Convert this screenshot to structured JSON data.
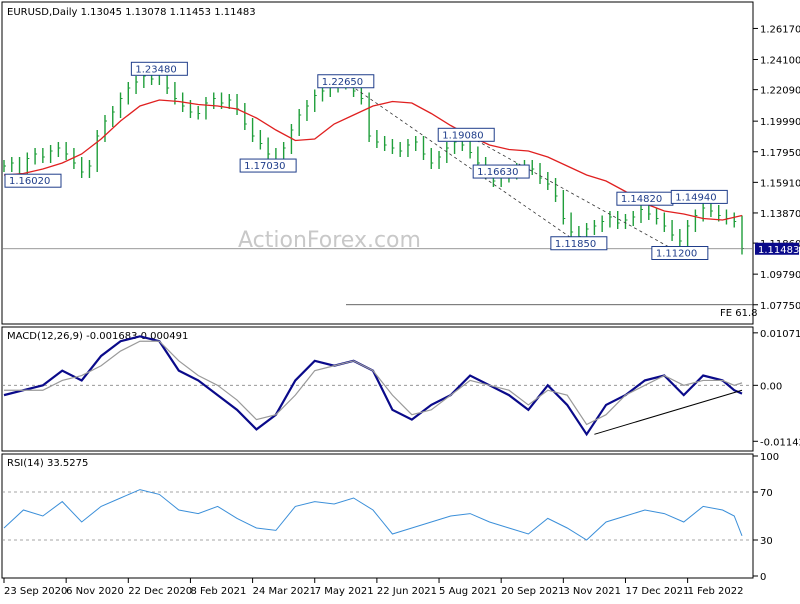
{
  "header": {
    "symbol_line": "EURUSD,Daily  1.13045 1.13078 1.11453 1.11483"
  },
  "watermark": "ActionForex.com",
  "colors": {
    "candle": "#1f9e3a",
    "ma": "#e02020",
    "macd_main": "#0a0a8a",
    "macd_signal": "#9a9a9a",
    "rsi": "#3b8fd9",
    "price_box": "#0a0a8a",
    "label": "#1f3d8a"
  },
  "chart_data": [
    {
      "type": "candlestick",
      "name": "price",
      "ylim": [
        1.066,
        1.278
      ],
      "y_ticks": [
        "1.26170",
        "1.24100",
        "1.22090",
        "1.19990",
        "1.17950",
        "1.15910",
        "1.13870",
        "1.11860",
        "1.09790",
        "1.07750"
      ],
      "y_tick_values": [
        1.2617,
        1.241,
        1.2209,
        1.1999,
        1.1795,
        1.1591,
        1.1387,
        1.1186,
        1.0979,
        1.0775
      ],
      "last_price": "1.11483",
      "last_price_value": 1.11483,
      "fe_label": "FE 61.8",
      "fe_value": 1.0775,
      "moving_average": [
        [
          0,
          1.164
        ],
        [
          10,
          1.165
        ],
        [
          20,
          1.168
        ],
        [
          30,
          1.172
        ],
        [
          40,
          1.178
        ],
        [
          50,
          1.188
        ],
        [
          60,
          1.2
        ],
        [
          70,
          1.21
        ],
        [
          80,
          1.214
        ],
        [
          90,
          1.213
        ],
        [
          100,
          1.211
        ],
        [
          110,
          1.21
        ],
        [
          120,
          1.208
        ],
        [
          130,
          1.202
        ],
        [
          140,
          1.194
        ],
        [
          150,
          1.187
        ],
        [
          160,
          1.188
        ],
        [
          170,
          1.198
        ],
        [
          180,
          1.204
        ],
        [
          190,
          1.21
        ],
        [
          200,
          1.213
        ],
        [
          210,
          1.212
        ],
        [
          220,
          1.205
        ],
        [
          230,
          1.197
        ],
        [
          240,
          1.19
        ],
        [
          250,
          1.184
        ],
        [
          260,
          1.181
        ],
        [
          270,
          1.18
        ],
        [
          280,
          1.176
        ],
        [
          290,
          1.17
        ],
        [
          300,
          1.164
        ],
        [
          310,
          1.16
        ],
        [
          320,
          1.153
        ],
        [
          330,
          1.145
        ],
        [
          340,
          1.14
        ],
        [
          350,
          1.138
        ],
        [
          360,
          1.135
        ],
        [
          370,
          1.134
        ],
        [
          380,
          1.137
        ]
      ],
      "candles": [
        [
          0,
          1.17
        ],
        [
          4,
          1.172
        ],
        [
          8,
          1.165
        ],
        [
          12,
          1.175
        ],
        [
          16,
          1.178
        ],
        [
          20,
          1.176
        ],
        [
          24,
          1.18
        ],
        [
          28,
          1.182
        ],
        [
          32,
          1.178
        ],
        [
          36,
          1.172
        ],
        [
          40,
          1.166
        ],
        [
          44,
          1.17
        ],
        [
          48,
          1.19
        ],
        [
          52,
          1.2
        ],
        [
          56,
          1.206
        ],
        [
          60,
          1.215
        ],
        [
          64,
          1.222
        ],
        [
          68,
          1.226
        ],
        [
          72,
          1.23
        ],
        [
          76,
          1.228
        ],
        [
          80,
          1.233
        ],
        [
          84,
          1.222
        ],
        [
          88,
          1.215
        ],
        [
          92,
          1.21
        ],
        [
          96,
          1.206
        ],
        [
          100,
          1.205
        ],
        [
          104,
          1.212
        ],
        [
          108,
          1.215
        ],
        [
          112,
          1.212
        ],
        [
          116,
          1.214
        ],
        [
          120,
          1.208
        ],
        [
          124,
          1.198
        ],
        [
          128,
          1.19
        ],
        [
          132,
          1.185
        ],
        [
          136,
          1.178
        ],
        [
          140,
          1.172
        ],
        [
          144,
          1.182
        ],
        [
          148,
          1.194
        ],
        [
          152,
          1.204
        ],
        [
          156,
          1.21
        ],
        [
          160,
          1.217
        ],
        [
          164,
          1.22
        ],
        [
          168,
          1.223
        ],
        [
          172,
          1.225
        ],
        [
          176,
          1.226
        ],
        [
          180,
          1.22
        ],
        [
          184,
          1.215
        ],
        [
          188,
          1.19
        ],
        [
          192,
          1.186
        ],
        [
          196,
          1.184
        ],
        [
          200,
          1.182
        ],
        [
          204,
          1.18
        ],
        [
          208,
          1.184
        ],
        [
          212,
          1.186
        ],
        [
          216,
          1.178
        ],
        [
          220,
          1.172
        ],
        [
          224,
          1.176
        ],
        [
          228,
          1.182
        ],
        [
          232,
          1.186
        ],
        [
          236,
          1.184
        ],
        [
          240,
          1.179
        ],
        [
          244,
          1.172
        ],
        [
          248,
          1.165
        ],
        [
          252,
          1.16
        ],
        [
          256,
          1.163
        ],
        [
          260,
          1.165
        ],
        [
          264,
          1.168
        ],
        [
          268,
          1.17
        ],
        [
          272,
          1.168
        ],
        [
          276,
          1.162
        ],
        [
          280,
          1.158
        ],
        [
          284,
          1.15
        ],
        [
          288,
          1.135
        ],
        [
          292,
          1.126
        ],
        [
          296,
          1.123
        ],
        [
          300,
          1.128
        ],
        [
          304,
          1.13
        ],
        [
          308,
          1.133
        ],
        [
          312,
          1.136
        ],
        [
          316,
          1.132
        ],
        [
          320,
          1.134
        ],
        [
          324,
          1.136
        ],
        [
          328,
          1.141
        ],
        [
          332,
          1.138
        ],
        [
          336,
          1.135
        ],
        [
          340,
          1.13
        ],
        [
          344,
          1.124
        ],
        [
          348,
          1.12
        ],
        [
          352,
          1.13
        ],
        [
          356,
          1.137
        ],
        [
          360,
          1.142
        ],
        [
          364,
          1.14
        ],
        [
          368,
          1.137
        ],
        [
          372,
          1.135
        ],
        [
          376,
          1.133
        ],
        [
          380,
          1.115
        ]
      ],
      "labels": [
        {
          "text": "1.16020",
          "x": 8,
          "price": 1.1602
        },
        {
          "text": "1.23480",
          "x": 80,
          "price": 1.2348
        },
        {
          "text": "1.17030",
          "x": 136,
          "price": 1.1703
        },
        {
          "text": "1.22650",
          "x": 176,
          "price": 1.2265
        },
        {
          "text": "1.16630",
          "x": 256,
          "price": 1.1663
        },
        {
          "text": "1.19080",
          "x": 238,
          "price": 1.1908
        },
        {
          "text": "1.11850",
          "x": 296,
          "price": 1.1185
        },
        {
          "text": "1.14820",
          "x": 330,
          "price": 1.1482
        },
        {
          "text": "1.14940",
          "x": 358,
          "price": 1.1494
        },
        {
          "text": "1.11200",
          "x": 348,
          "price": 1.112
        }
      ],
      "dashed_channel": [
        [
          176,
          1.226
        ],
        [
          296,
          1.1185
        ]
      ],
      "dashed_channel_2": [
        [
          238,
          1.1908
        ],
        [
          348,
          1.112
        ]
      ]
    },
    {
      "type": "line",
      "name": "MACD(12,26,9)",
      "header": "MACD(12,26,9) -0.001683 0.000491",
      "ylim": [
        -0.013,
        0.0115
      ],
      "y_ticks": [
        "0.010715",
        "0.00",
        "-0.011424"
      ],
      "y_tick_values": [
        0.010715,
        0.0,
        -0.011424
      ],
      "series": [
        {
          "name": "main",
          "values": [
            [
              0,
              -0.002
            ],
            [
              10,
              -0.001
            ],
            [
              20,
              0.0
            ],
            [
              30,
              0.003
            ],
            [
              40,
              0.001
            ],
            [
              50,
              0.006
            ],
            [
              60,
              0.009
            ],
            [
              70,
              0.01
            ],
            [
              80,
              0.009
            ],
            [
              90,
              0.003
            ],
            [
              100,
              0.001
            ],
            [
              110,
              -0.002
            ],
            [
              120,
              -0.005
            ],
            [
              130,
              -0.009
            ],
            [
              140,
              -0.006
            ],
            [
              150,
              0.001
            ],
            [
              160,
              0.005
            ],
            [
              170,
              0.004
            ],
            [
              180,
              0.005
            ],
            [
              190,
              0.003
            ],
            [
              200,
              -0.005
            ],
            [
              210,
              -0.007
            ],
            [
              220,
              -0.004
            ],
            [
              230,
              -0.002
            ],
            [
              240,
              0.002
            ],
            [
              250,
              0.0
            ],
            [
              260,
              -0.002
            ],
            [
              270,
              -0.005
            ],
            [
              280,
              0.0
            ],
            [
              290,
              -0.004
            ],
            [
              300,
              -0.01
            ],
            [
              310,
              -0.004
            ],
            [
              320,
              -0.002
            ],
            [
              330,
              0.001
            ],
            [
              340,
              0.002
            ],
            [
              350,
              -0.002
            ],
            [
              360,
              0.002
            ],
            [
              370,
              0.001
            ],
            [
              376,
              -0.001
            ],
            [
              380,
              -0.0017
            ]
          ]
        },
        {
          "name": "signal",
          "values": [
            [
              0,
              -0.001
            ],
            [
              10,
              -0.001
            ],
            [
              20,
              -0.001
            ],
            [
              30,
              0.001
            ],
            [
              40,
              0.002
            ],
            [
              50,
              0.004
            ],
            [
              60,
              0.007
            ],
            [
              70,
              0.009
            ],
            [
              80,
              0.009
            ],
            [
              90,
              0.005
            ],
            [
              100,
              0.002
            ],
            [
              110,
              0.0
            ],
            [
              120,
              -0.003
            ],
            [
              130,
              -0.007
            ],
            [
              140,
              -0.006
            ],
            [
              150,
              -0.002
            ],
            [
              160,
              0.003
            ],
            [
              170,
              0.004
            ],
            [
              180,
              0.005
            ],
            [
              190,
              0.003
            ],
            [
              200,
              -0.002
            ],
            [
              210,
              -0.006
            ],
            [
              220,
              -0.005
            ],
            [
              230,
              -0.002
            ],
            [
              240,
              0.001
            ],
            [
              250,
              0.0
            ],
            [
              260,
              -0.001
            ],
            [
              270,
              -0.004
            ],
            [
              280,
              -0.001
            ],
            [
              290,
              -0.002
            ],
            [
              300,
              -0.008
            ],
            [
              310,
              -0.006
            ],
            [
              320,
              -0.002
            ],
            [
              330,
              0.0
            ],
            [
              340,
              0.002
            ],
            [
              350,
              0.0
            ],
            [
              360,
              0.001
            ],
            [
              370,
              0.001
            ],
            [
              376,
              0.0
            ],
            [
              380,
              0.0005
            ]
          ]
        }
      ],
      "trendline": [
        [
          304,
          -0.01
        ],
        [
          380,
          -0.001
        ]
      ]
    },
    {
      "type": "line",
      "name": "RSI(14)",
      "header": "RSI(14) 33.5275",
      "ylim": [
        0,
        100
      ],
      "y_ticks": [
        "100",
        "70",
        "30",
        "0"
      ],
      "y_tick_values": [
        100,
        70,
        30,
        0
      ],
      "series": [
        {
          "name": "RSI",
          "values": [
            [
              0,
              40
            ],
            [
              10,
              55
            ],
            [
              20,
              50
            ],
            [
              30,
              62
            ],
            [
              40,
              45
            ],
            [
              50,
              58
            ],
            [
              60,
              65
            ],
            [
              70,
              72
            ],
            [
              80,
              68
            ],
            [
              90,
              55
            ],
            [
              100,
              52
            ],
            [
              110,
              58
            ],
            [
              120,
              48
            ],
            [
              130,
              40
            ],
            [
              140,
              38
            ],
            [
              150,
              58
            ],
            [
              160,
              62
            ],
            [
              170,
              60
            ],
            [
              180,
              65
            ],
            [
              190,
              55
            ],
            [
              200,
              35
            ],
            [
              210,
              40
            ],
            [
              220,
              45
            ],
            [
              230,
              50
            ],
            [
              240,
              52
            ],
            [
              250,
              45
            ],
            [
              260,
              40
            ],
            [
              270,
              35
            ],
            [
              280,
              48
            ],
            [
              290,
              40
            ],
            [
              300,
              30
            ],
            [
              310,
              45
            ],
            [
              320,
              50
            ],
            [
              330,
              55
            ],
            [
              340,
              52
            ],
            [
              350,
              45
            ],
            [
              360,
              58
            ],
            [
              370,
              55
            ],
            [
              376,
              50
            ],
            [
              380,
              33.5
            ]
          ]
        }
      ]
    }
  ],
  "x_axis": {
    "labels": [
      "23 Sep 2020",
      "6 Nov 2020",
      "22 Dec 2020",
      "8 Feb 2021",
      "24 Mar 2021",
      "7 May 2021",
      "22 Jun 2021",
      "5 Aug 2021",
      "20 Sep 2021",
      "3 Nov 2021",
      "17 Dec 2021",
      "1 Feb 2022"
    ],
    "positions": [
      0,
      32,
      64,
      96,
      128,
      160,
      192,
      224,
      256,
      288,
      320,
      352
    ]
  }
}
